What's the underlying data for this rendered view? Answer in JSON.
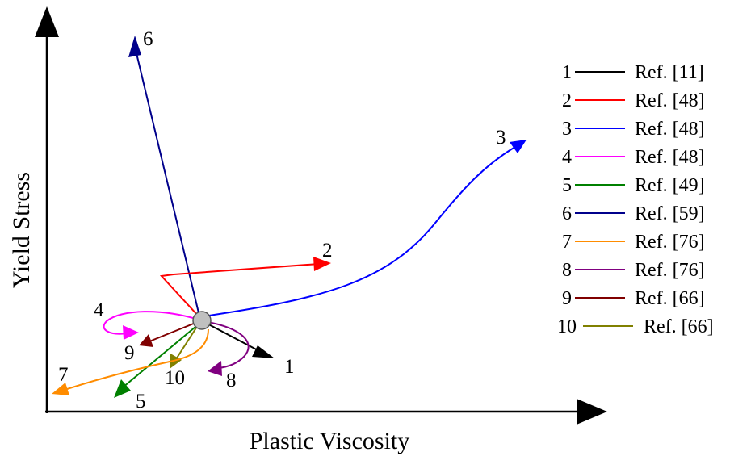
{
  "diagram": {
    "x_axis_label": "Plastic Viscosity",
    "y_axis_label": "Yield Stress",
    "origin_marker": "circle",
    "arrows": [
      {
        "id": "1",
        "color": "#000000"
      },
      {
        "id": "2",
        "color": "#ff0000"
      },
      {
        "id": "3",
        "color": "#0000ff"
      },
      {
        "id": "4",
        "color": "#ff00ff"
      },
      {
        "id": "5",
        "color": "#008000"
      },
      {
        "id": "6",
        "color": "#00008b"
      },
      {
        "id": "7",
        "color": "#ff8c00"
      },
      {
        "id": "8",
        "color": "#800080"
      },
      {
        "id": "9",
        "color": "#800000"
      },
      {
        "id": "10",
        "color": "#808000"
      }
    ],
    "legend": [
      {
        "num": "1",
        "ref": "Ref. [11]",
        "color": "#000000"
      },
      {
        "num": "2",
        "ref": "Ref. [48]",
        "color": "#ff0000"
      },
      {
        "num": "3",
        "ref": "Ref. [48]",
        "color": "#0000ff"
      },
      {
        "num": "4",
        "ref": "Ref. [48]",
        "color": "#ff00ff"
      },
      {
        "num": "5",
        "ref": "Ref. [49]",
        "color": "#008000"
      },
      {
        "num": "6",
        "ref": "Ref. [59]",
        "color": "#00008b"
      },
      {
        "num": "7",
        "ref": "Ref. [76]",
        "color": "#ff8c00"
      },
      {
        "num": "8",
        "ref": "Ref. [76]",
        "color": "#800080"
      },
      {
        "num": "9",
        "ref": "Ref. [66]",
        "color": "#800000"
      },
      {
        "num": "10",
        "ref": "Ref. [66]",
        "color": "#808000"
      }
    ]
  }
}
